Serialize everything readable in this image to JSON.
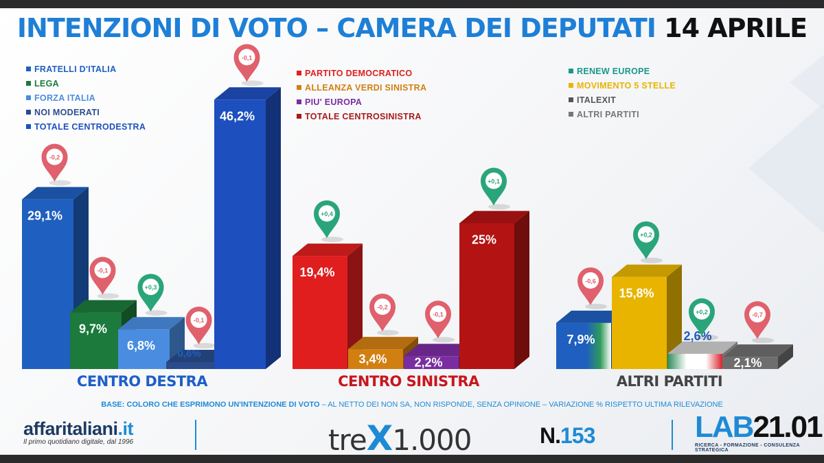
{
  "header": {
    "title_main": "INTENZIONI DI VOTO – CAMERA DEI DEPUTATI",
    "title_date": "14 APRILE"
  },
  "legends": [
    {
      "items": [
        {
          "label": "FRATELLI D'ITALIA",
          "color": "#1f5fbf"
        },
        {
          "label": "LEGA",
          "color": "#1b7a3c"
        },
        {
          "label": "FORZA ITALIA",
          "color": "#4a8de0"
        },
        {
          "label": "NOI MODERATI",
          "color": "#2a4c8c"
        },
        {
          "label": "TOTALE CENTRODESTRA",
          "color": "#1e4fbf"
        }
      ]
    },
    {
      "items": [
        {
          "label": "PARTITO DEMOCRATICO",
          "color": "#e01e1e"
        },
        {
          "label": "ALLEANZA VERDI SINISTRA",
          "color": "#d27f12"
        },
        {
          "label": "PIU' EUROPA",
          "color": "#7a2da0"
        },
        {
          "label": "TOTALE CENTROSINISTRA",
          "color": "#a81a1a"
        }
      ]
    },
    {
      "items": [
        {
          "label": "RENEW EUROPE",
          "color": "#17988a"
        },
        {
          "label": "MOVIMENTO 5 STELLE",
          "color": "#e8b400"
        },
        {
          "label": "ITALEXIT",
          "color": "#555555"
        },
        {
          "label": "ALTRI PARTITI",
          "color": "#777777"
        }
      ]
    }
  ],
  "chart_data": {
    "type": "bar",
    "groups": [
      {
        "label": "CENTRO DESTRA",
        "label_color": "#1e5fc8",
        "bars": [
          {
            "name": "FRATELLI D'ITALIA",
            "value": 29.1,
            "value_label": "29,1%",
            "change": "-0,2",
            "color": "#1f5fbf"
          },
          {
            "name": "LEGA",
            "value": 9.7,
            "value_label": "9,7%",
            "change": "-0,1",
            "color": "#1b7a3c"
          },
          {
            "name": "FORZA ITALIA",
            "value": 6.8,
            "value_label": "6,8%",
            "change": "+0,3",
            "color": "#4a8de0"
          },
          {
            "name": "NOI MODERATI",
            "value": 0.6,
            "value_label": "0,6%",
            "change": "-0,1",
            "color": "#2a4c8c"
          },
          {
            "name": "TOTALE CENTRODESTRA",
            "value": 46.2,
            "value_label": "46,2%",
            "change": "-0,1",
            "color": "#1e4fbf"
          }
        ]
      },
      {
        "label": "CENTRO SINISTRA",
        "label_color": "#c8161d",
        "bars": [
          {
            "name": "PARTITO DEMOCRATICO",
            "value": 19.4,
            "value_label": "19,4%",
            "change": "+0,4",
            "color": "#e01e1e"
          },
          {
            "name": "ALLEANZA VERDI SINISTRA",
            "value": 3.4,
            "value_label": "3,4%",
            "change": "-0,2",
            "color": "#d27f12"
          },
          {
            "name": "PIU' EUROPA",
            "value": 2.2,
            "value_label": "2,2%",
            "change": "-0,1",
            "color": "#7a2da0"
          },
          {
            "name": "TOTALE CENTROSINISTRA",
            "value": 25,
            "value_label": "25%",
            "change": "+0,1",
            "color": "#b31313"
          }
        ]
      },
      {
        "label": "ALTRI PARTITI",
        "label_color": "#444444",
        "bars": [
          {
            "name": "RENEW EUROPE",
            "value": 7.9,
            "value_label": "7,9%",
            "change": "-0,6",
            "color": "#1f5fbf"
          },
          {
            "name": "MOVIMENTO 5 STELLE",
            "value": 15.8,
            "value_label": "15,8%",
            "change": "+0,2",
            "color": "#e8b400"
          },
          {
            "name": "ITALEXIT",
            "value": 2.6,
            "value_label": "2,6%",
            "change": "+0,2",
            "color": "#e6e6e6"
          },
          {
            "name": "ALTRI PARTITI",
            "value": 2.1,
            "value_label": "2,1%",
            "change": "-0,7",
            "color": "#6e6e6e"
          }
        ]
      }
    ],
    "change_colors": {
      "up": "#2aa57a",
      "down": "#e0606c"
    }
  },
  "footer": {
    "base_bold": "BASE: COLORO CHE ESPRIMONO UN'INTENZIONE DI VOTO",
    "base_rest": " – AL NETTO DEI NON SA, NON RISPONDE, SENZA OPINIONE – VARIAZIONE % RISPETTO ULTIMA RILEVAZIONE",
    "affari_name": "affaritaliani",
    "affari_tld": ".it",
    "affari_tagline": "Il primo quotidiano digitale, dal 1996",
    "trex_pre": "tre",
    "trex_x": "X",
    "trex_post": "1.000",
    "issue_n": "N.",
    "issue_number": "153",
    "lab_a": "LAB",
    "lab_b": "21.01",
    "lab_tagline": "RICERCA - FORMAZIONE - CONSULENZA STRATEGICA"
  }
}
